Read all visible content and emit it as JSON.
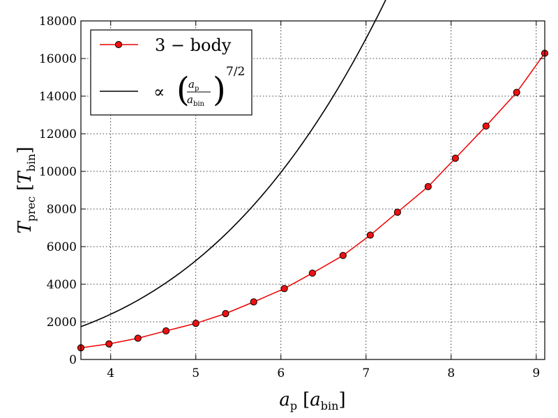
{
  "chart_data": {
    "type": "line",
    "xlabel": "a_p [a_bin]",
    "ylabel": "T_prec [T_bin]",
    "xlim": [
      3.65,
      9.1
    ],
    "ylim": [
      0,
      18000
    ],
    "xticks": [
      "4",
      "5",
      "6",
      "7",
      "8",
      "9"
    ],
    "yticks": [
      "0",
      "2000",
      "4000",
      "6000",
      "8000",
      "10000",
      "12000",
      "14000",
      "16000",
      "18000"
    ],
    "grid": true,
    "legend_position": "top-left",
    "series": [
      {
        "name": "3 − body",
        "color": "#ee0000",
        "marker": "circle",
        "x": [
          3.65,
          3.98,
          4.32,
          4.65,
          5.0,
          5.35,
          5.68,
          6.04,
          6.37,
          6.73,
          7.05,
          7.37,
          7.73,
          8.05,
          8.41,
          8.77,
          9.1
        ],
        "y": [
          620,
          830,
          1130,
          1520,
          1920,
          2440,
          3060,
          3770,
          4590,
          5530,
          6610,
          7830,
          9190,
          10700,
          12410,
          14200,
          16280
        ]
      },
      {
        "name": "∝ (a_p / a_bin)^(7/2)",
        "color": "#000000",
        "marker": "none",
        "formula": {
          "coefficient": 18.8,
          "exponent": 3.5
        },
        "x_range": [
          3.65,
          9.1
        ]
      }
    ]
  },
  "axes": {
    "x_main": "a",
    "x_sub": "p",
    "x_bracket_main": "a",
    "x_bracket_sub": "bin",
    "y_main": "T",
    "y_sub": "prec",
    "y_bracket_main": "T",
    "y_bracket_sub": "bin"
  },
  "legend": {
    "entry1": "3 − body",
    "entry2_prefix": "∝",
    "entry2_num_main": "a",
    "entry2_num_sub": "p",
    "entry2_den_main": "a",
    "entry2_den_sub": "bin",
    "entry2_exponent": "7/2"
  }
}
